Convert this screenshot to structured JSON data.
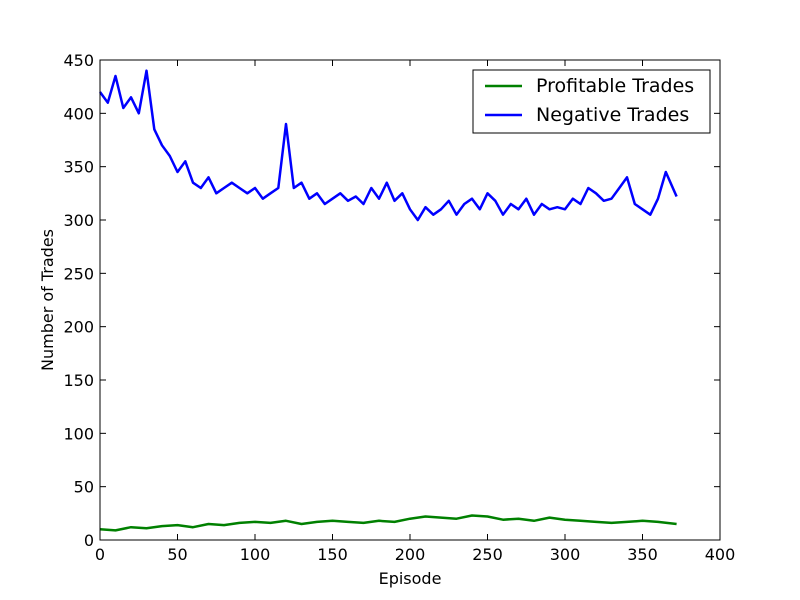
{
  "chart_data": {
    "type": "line",
    "xlabel": "Episode",
    "ylabel": "Number of Trades",
    "xlim": [
      0,
      400
    ],
    "ylim": [
      0,
      450
    ],
    "xticks": [
      0,
      50,
      100,
      150,
      200,
      250,
      300,
      350,
      400
    ],
    "yticks": [
      0,
      50,
      100,
      150,
      200,
      250,
      300,
      350,
      400,
      450
    ],
    "grid": false,
    "legend_position": "top-right",
    "series": [
      {
        "name": "Profitable Trades",
        "color": "#008000",
        "points": [
          [
            0,
            10
          ],
          [
            10,
            9
          ],
          [
            20,
            12
          ],
          [
            30,
            11
          ],
          [
            40,
            13
          ],
          [
            50,
            14
          ],
          [
            60,
            12
          ],
          [
            70,
            15
          ],
          [
            80,
            14
          ],
          [
            90,
            16
          ],
          [
            100,
            17
          ],
          [
            110,
            16
          ],
          [
            120,
            18
          ],
          [
            130,
            15
          ],
          [
            140,
            17
          ],
          [
            150,
            18
          ],
          [
            160,
            17
          ],
          [
            170,
            16
          ],
          [
            180,
            18
          ],
          [
            190,
            17
          ],
          [
            200,
            20
          ],
          [
            210,
            22
          ],
          [
            220,
            21
          ],
          [
            230,
            20
          ],
          [
            240,
            23
          ],
          [
            250,
            22
          ],
          [
            260,
            19
          ],
          [
            270,
            20
          ],
          [
            280,
            18
          ],
          [
            290,
            21
          ],
          [
            300,
            19
          ],
          [
            310,
            18
          ],
          [
            320,
            17
          ],
          [
            330,
            16
          ],
          [
            340,
            17
          ],
          [
            350,
            18
          ],
          [
            360,
            17
          ],
          [
            372,
            15
          ]
        ]
      },
      {
        "name": "Negative Trades",
        "color": "#0000ff",
        "points": [
          [
            0,
            420
          ],
          [
            5,
            410
          ],
          [
            10,
            435
          ],
          [
            15,
            405
          ],
          [
            20,
            415
          ],
          [
            25,
            400
          ],
          [
            30,
            440
          ],
          [
            35,
            385
          ],
          [
            40,
            370
          ],
          [
            45,
            360
          ],
          [
            50,
            345
          ],
          [
            55,
            355
          ],
          [
            60,
            335
          ],
          [
            65,
            330
          ],
          [
            70,
            340
          ],
          [
            75,
            325
          ],
          [
            80,
            330
          ],
          [
            85,
            335
          ],
          [
            90,
            330
          ],
          [
            95,
            325
          ],
          [
            100,
            330
          ],
          [
            105,
            320
          ],
          [
            110,
            325
          ],
          [
            115,
            330
          ],
          [
            120,
            390
          ],
          [
            125,
            330
          ],
          [
            130,
            335
          ],
          [
            135,
            320
          ],
          [
            140,
            325
          ],
          [
            145,
            315
          ],
          [
            150,
            320
          ],
          [
            155,
            325
          ],
          [
            160,
            318
          ],
          [
            165,
            322
          ],
          [
            170,
            315
          ],
          [
            175,
            330
          ],
          [
            180,
            320
          ],
          [
            185,
            335
          ],
          [
            190,
            318
          ],
          [
            195,
            325
          ],
          [
            200,
            310
          ],
          [
            205,
            300
          ],
          [
            210,
            312
          ],
          [
            215,
            305
          ],
          [
            220,
            310
          ],
          [
            225,
            318
          ],
          [
            230,
            305
          ],
          [
            235,
            315
          ],
          [
            240,
            320
          ],
          [
            245,
            310
          ],
          [
            250,
            325
          ],
          [
            255,
            318
          ],
          [
            260,
            305
          ],
          [
            265,
            315
          ],
          [
            270,
            310
          ],
          [
            275,
            320
          ],
          [
            280,
            305
          ],
          [
            285,
            315
          ],
          [
            290,
            310
          ],
          [
            295,
            312
          ],
          [
            300,
            310
          ],
          [
            305,
            320
          ],
          [
            310,
            315
          ],
          [
            315,
            330
          ],
          [
            320,
            325
          ],
          [
            325,
            318
          ],
          [
            330,
            320
          ],
          [
            335,
            330
          ],
          [
            340,
            340
          ],
          [
            345,
            315
          ],
          [
            350,
            310
          ],
          [
            355,
            305
          ],
          [
            360,
            320
          ],
          [
            365,
            345
          ],
          [
            372,
            322
          ]
        ]
      }
    ]
  }
}
